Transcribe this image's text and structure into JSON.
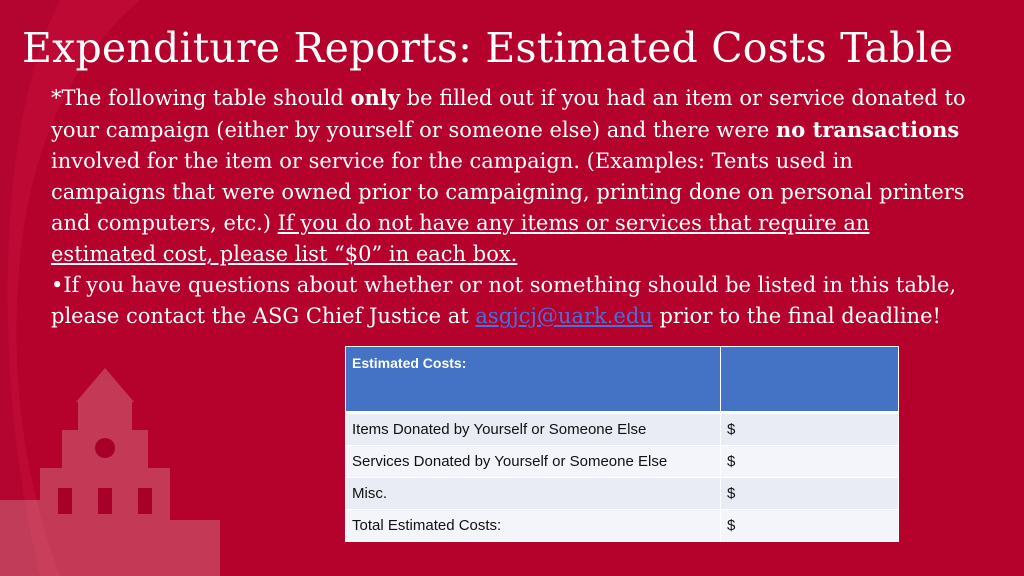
{
  "slide": {
    "title": "Expenditure Reports: Estimated Costs Table",
    "paragraph1": {
      "t1": "*The following table should ",
      "b1": "only",
      "t2": " be filled out if you had an item or service donated to your campaign (either by yourself or someone else) and there were ",
      "b2": "no transactions",
      "t3": " involved for the item or service for the campaign. (Examples: Tents used in campaigns that were owned prior to campaigning, printing done on personal printers and computers, etc.) ",
      "u1": "If you do not have any items or services that require an estimated cost, please list “$0” in each box."
    },
    "paragraph2": {
      "t1": "•If you have questions about whether or not something should be listed in this table, please contact the ASG Chief Justice at ",
      "email": "asgjcj@uark.edu",
      "t2": " prior to the final deadline!"
    }
  },
  "table": {
    "header": [
      "Estimated Costs:",
      ""
    ],
    "rows": [
      [
        "Items Donated by Yourself or Someone Else",
        "$"
      ],
      [
        "Services Donated by Yourself or Someone Else",
        "$"
      ],
      [
        "Misc.",
        "$"
      ],
      [
        "Total Estimated Costs:",
        "$"
      ]
    ]
  },
  "colors": {
    "background": "#b5022d",
    "table_header": "#4472c4",
    "table_row": "#e9ebf5",
    "link": "#4a6fd6"
  }
}
